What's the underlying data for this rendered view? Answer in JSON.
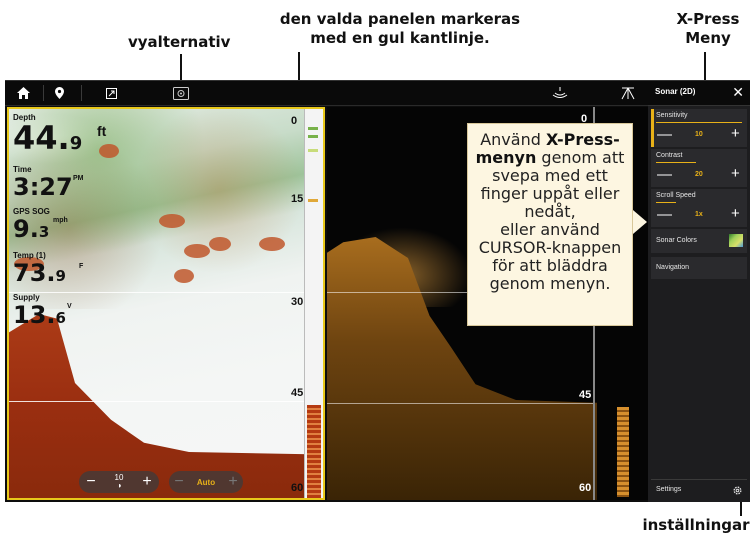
{
  "callouts": {
    "view_options": "vyalternativ",
    "selected_panel_line1": "den valda panelen markeras",
    "selected_panel_line2": "med en gul kantlinje.",
    "xpress_line1": "X-Press",
    "xpress_line2": "Meny",
    "settings": "inställningar"
  },
  "topbar": {
    "icons": [
      "home-icon",
      "location-pin-icon",
      "fullscreen-icon",
      "view-options-icon",
      "sonar-icon",
      "down-imaging-icon"
    ]
  },
  "left_panel": {
    "depth_title": "Depth",
    "depth_value": "44.",
    "depth_decimal": "9",
    "depth_unit": "ft",
    "time_title": "Time",
    "time_value": "3:27",
    "time_unit": "PM",
    "speed_title": "GPS SOG",
    "speed_value": "9.",
    "speed_decimal": "3",
    "speed_unit": "mph",
    "temp_title": "Temp (1)",
    "temp_value": "73.",
    "temp_decimal": "9",
    "temp_unit": "F",
    "supply_title": "Supply",
    "supply_value": "13.",
    "supply_decimal": "6",
    "supply_unit": "V",
    "depth_scale": [
      "0",
      "15",
      "30",
      "45",
      "60"
    ],
    "controls": {
      "sensitivity_value": "10",
      "auto_label": "Auto",
      "minus": "−",
      "plus": "+"
    }
  },
  "right_panel": {
    "depth_scale": [
      "0",
      "45",
      "60"
    ]
  },
  "xpress_menu": {
    "title": "Sonar (2D)",
    "close": "✕",
    "sensitivity_label": "Sensitivity",
    "sensitivity_value": "10",
    "contrast_label": "Contrast",
    "contrast_value": "20",
    "scroll_speed_label": "Scroll Speed",
    "scroll_speed_value": "1x",
    "sonar_colors_label": "Sonar Colors",
    "navigation_label": "Navigation",
    "settings_label": "Settings",
    "minus": "—",
    "plus": "+"
  },
  "bubble": {
    "part1": "Använd ",
    "bold1": "X-Press-",
    "bold2": "menyn",
    "part2": " genom att svepa med ett finger uppåt eller nedåt,",
    "part3": "eller använd CURSOR-knappen för att bläddra genom menyn."
  },
  "colors": {
    "selection_border": "#e8c81a",
    "accent": "#e8b118",
    "menu_bg": "#1d1d1f"
  }
}
